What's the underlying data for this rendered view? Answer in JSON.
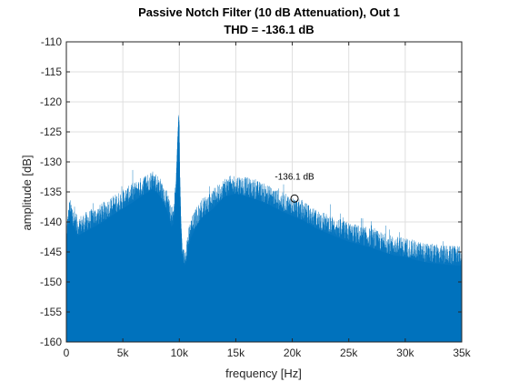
{
  "chart_data": {
    "type": "area",
    "title": "Passive Notch Filter (10 dB Attenuation), Out 1",
    "subtitle": "THD = -136.1 dB",
    "xlabel": "frequency [Hz]",
    "ylabel": "amplitude [dB]",
    "xlim": [
      0,
      35000
    ],
    "ylim": [
      -160,
      -110
    ],
    "xticks": [
      0,
      5000,
      10000,
      15000,
      20000,
      25000,
      30000,
      35000
    ],
    "xtick_labels": [
      "0",
      "5k",
      "10k",
      "15k",
      "20k",
      "25k",
      "30k",
      "35k"
    ],
    "yticks": [
      -110,
      -115,
      -120,
      -125,
      -130,
      -135,
      -140,
      -145,
      -150,
      -155,
      -160
    ],
    "ytick_labels": [
      "-110",
      "-115",
      "-120",
      "-125",
      "-130",
      "-135",
      "-140",
      "-145",
      "-150",
      "-155",
      "-160"
    ],
    "grid": true,
    "color": "#0072BD",
    "envelope": {
      "x": [
        0,
        300,
        1000,
        2000,
        3000,
        4000,
        5000,
        6000,
        7000,
        7600,
        8000,
        8500,
        9000,
        9300,
        9500,
        9700,
        9850,
        9950,
        10000,
        10050,
        10150,
        10300,
        10500,
        10700,
        11000,
        11500,
        12000,
        13000,
        14000,
        15000,
        16000,
        17000,
        18000,
        19000,
        20000,
        21000,
        22000,
        23000,
        24000,
        25000,
        26000,
        27000,
        28000,
        29000,
        30000,
        31000,
        32000,
        33000,
        34000,
        35000
      ],
      "y": [
        -141.5,
        -137.5,
        -140.5,
        -139.5,
        -138.5,
        -137.2,
        -136,
        -134.8,
        -133.5,
        -132.8,
        -133.3,
        -134.5,
        -136.8,
        -139,
        -138.5,
        -134,
        -126,
        -122,
        -124,
        -132,
        -140,
        -146,
        -145.5,
        -143.5,
        -141,
        -139,
        -137.5,
        -136,
        -134,
        -133.5,
        -134,
        -134.6,
        -135.4,
        -136.4,
        -137.2,
        -138,
        -139.2,
        -140,
        -140.8,
        -141.5,
        -142,
        -142.5,
        -143.2,
        -143.8,
        -144,
        -144.6,
        -145,
        -145.2,
        -145.4,
        -145.5
      ]
    },
    "marker": {
      "x": 20200,
      "y": -136.1,
      "label": "-136.1 dB"
    }
  }
}
